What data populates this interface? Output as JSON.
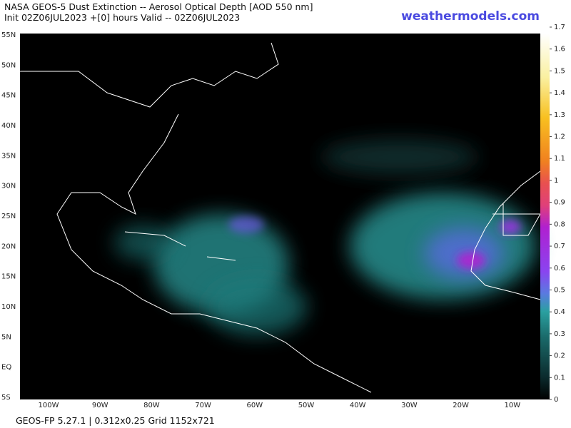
{
  "header": {
    "title": "NASA GEOS-5 Dust Extinction -- Aerosol Optical Depth [AOD 550 nm]",
    "subtitle": "Init 02Z06JUL2023 +[0] hours Valid -- 02Z06JUL2023",
    "brand": "weathermodels.com"
  },
  "map": {
    "lat_labels": [
      "55N",
      "50N",
      "45N",
      "40N",
      "35N",
      "30N",
      "25N",
      "20N",
      "15N",
      "10N",
      "5N",
      "EQ",
      "5S"
    ],
    "lon_labels": [
      "100W",
      "90W",
      "80W",
      "70W",
      "60W",
      "50W",
      "40W",
      "30W",
      "20W",
      "10W"
    ]
  },
  "colorbar": {
    "lim": [
      0,
      1.7
    ],
    "ticks": [
      0,
      0.1,
      0.2,
      0.3,
      0.4,
      0.5,
      0.6,
      0.7,
      0.8,
      0.9,
      1,
      1.1,
      1.2,
      1.3,
      1.4,
      1.5,
      1.6,
      1.7
    ]
  },
  "footer": {
    "text": "GEOS-FP 5.27.1 | 0.312x0.25 Grid 1152x721"
  }
}
